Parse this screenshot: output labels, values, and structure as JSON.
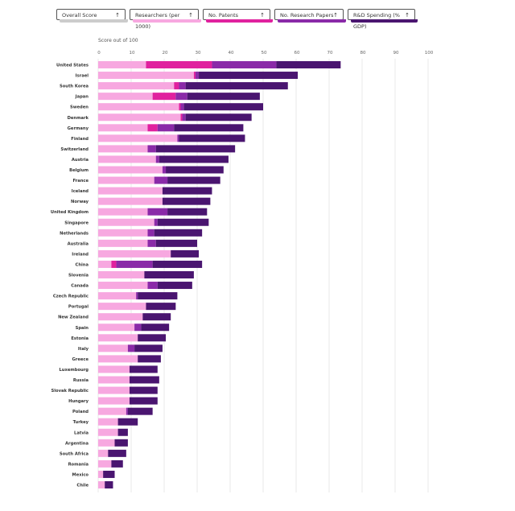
{
  "sort_buttons": [
    {
      "label": "Overall Score",
      "arrow": "↑",
      "color": "#cccccc"
    },
    {
      "label": "Researchers (per 1000)",
      "arrow": "↑",
      "color": "#f7a8e0"
    },
    {
      "label": "No. Patents",
      "arrow": "↑",
      "color": "#e0219e"
    },
    {
      "label": "No. Research Papers",
      "arrow": "↑",
      "color": "#8a2aa8"
    },
    {
      "label": "R&D Spending (% GDP)",
      "arrow": "↑",
      "color": "#4a1570"
    }
  ],
  "chart_data": {
    "type": "bar",
    "orientation": "horizontal",
    "stacked": true,
    "title": "Score out of 100",
    "xlim": [
      0,
      100
    ],
    "xticks": [
      0,
      10,
      20,
      30,
      40,
      50,
      60,
      70,
      80,
      90,
      100
    ],
    "grid": true,
    "categories": [
      "United States",
      "Israel",
      "South Korea",
      "Japan",
      "Sweden",
      "Denmark",
      "Germany",
      "Finland",
      "Switzerland",
      "Austria",
      "Belgium",
      "France",
      "Iceland",
      "Norway",
      "United Kingdom",
      "Singapore",
      "Netherlands",
      "Australia",
      "Ireland",
      "China",
      "Slovenia",
      "Canada",
      "Czech Republic",
      "Portugal",
      "New Zealand",
      "Spain",
      "Estonia",
      "Italy",
      "Greece",
      "Luxembourg",
      "Russia",
      "Slovak Republic",
      "Hungary",
      "Poland",
      "Turkey",
      "Latvia",
      "Argentina",
      "South Africa",
      "Romania",
      "Mexico",
      "Chile"
    ],
    "series": [
      {
        "name": "Researchers (per 1000)",
        "color": "#f7a8e0",
        "values": [
          14.5,
          29,
          23,
          16.5,
          24.5,
          25,
          15,
          24,
          15,
          17.5,
          19.5,
          17,
          19.5,
          19.5,
          15,
          17,
          15,
          15,
          22,
          4,
          14,
          15,
          11.5,
          14.5,
          13.5,
          11,
          12,
          9,
          12,
          9.5,
          9.5,
          9.5,
          9.5,
          8.5,
          6,
          6,
          5,
          3,
          4,
          1.5,
          2
        ]
      },
      {
        "name": "No. Patents",
        "color": "#e0219e",
        "values": [
          20,
          0.5,
          1.5,
          7,
          0.5,
          0.5,
          3,
          0,
          0,
          0,
          0,
          0,
          0,
          0,
          0,
          0,
          0,
          0,
          0,
          1.5,
          0,
          0,
          0,
          0,
          0,
          0,
          0,
          0,
          0,
          0,
          0,
          0,
          0,
          0,
          0,
          0,
          0,
          0,
          0,
          0,
          0
        ]
      },
      {
        "name": "No. Research Papers",
        "color": "#8a2aa8",
        "values": [
          19.5,
          1,
          2,
          3.5,
          1,
          1,
          5,
          0.5,
          2.5,
          1,
          1,
          4,
          0,
          0,
          6,
          1,
          2,
          2.5,
          0,
          11,
          0,
          3,
          0.5,
          0,
          0,
          2,
          0,
          2,
          0,
          0,
          0,
          0,
          0,
          0.5,
          0,
          0,
          0,
          0,
          0,
          0,
          0
        ]
      },
      {
        "name": "R&D Spending (% GDP)",
        "color": "#4a1570",
        "values": [
          19.5,
          30,
          31,
          22,
          24,
          20,
          21,
          20,
          24,
          21,
          17.5,
          16,
          15,
          14.5,
          12,
          15.5,
          14.5,
          12.5,
          8.5,
          15,
          15,
          10.5,
          12,
          9,
          8.5,
          8.5,
          8.5,
          8.5,
          7,
          8.5,
          9,
          8.5,
          8.5,
          7.5,
          6,
          3,
          4,
          5.5,
          3.5,
          3.5,
          2.5
        ]
      }
    ]
  }
}
